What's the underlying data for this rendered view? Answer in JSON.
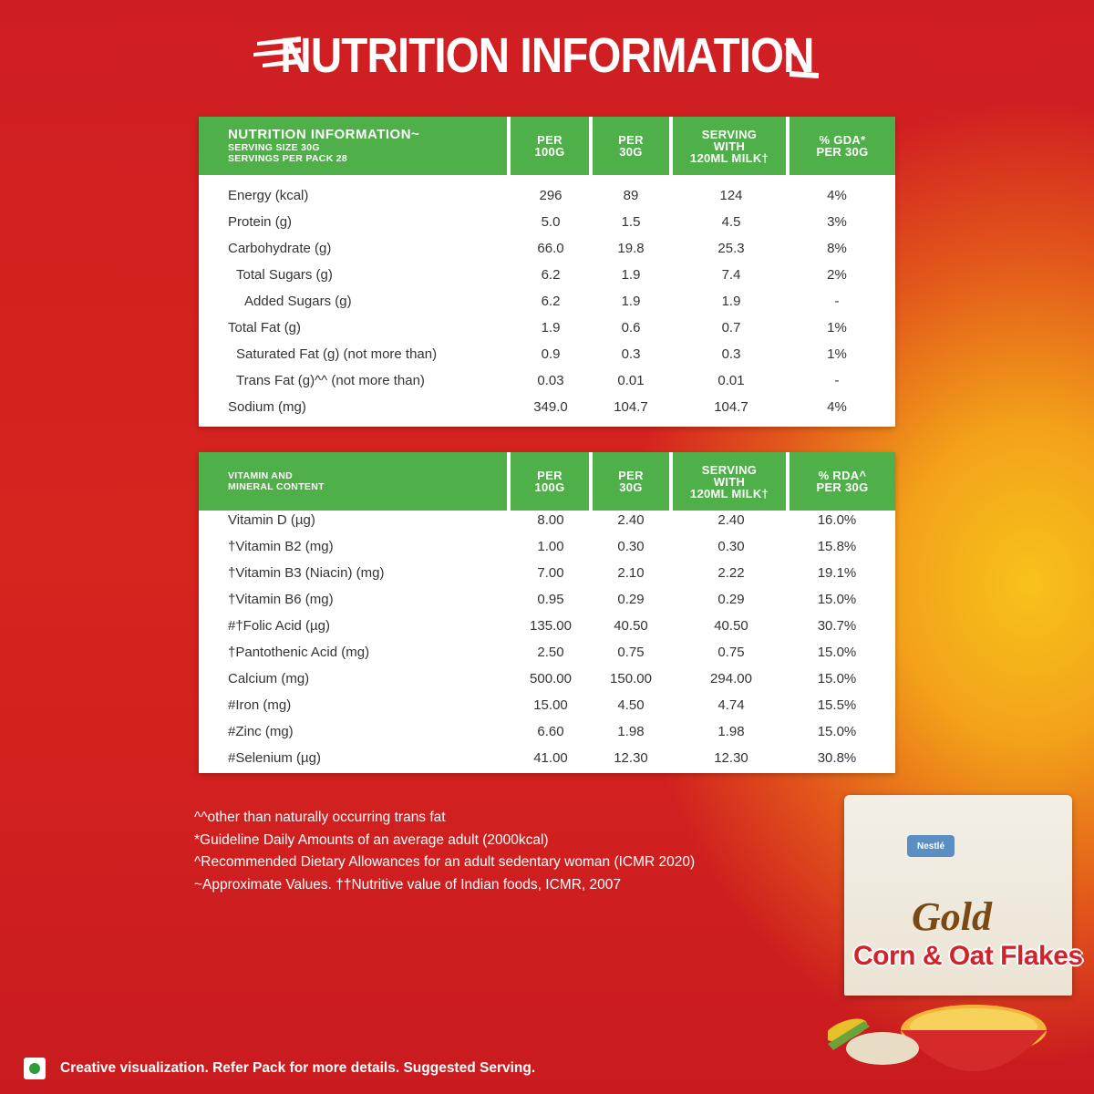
{
  "headline": "NUTRITION INFORMATION",
  "table1": {
    "header": {
      "title": "NUTRITION INFORMATION~",
      "line2": "SERVING SIZE 30G",
      "line3": "SERVINGS PER PACK 28",
      "col1": [
        "PER",
        "100G"
      ],
      "col2": [
        "PER",
        "30G"
      ],
      "col3": [
        "SERVING",
        "WITH",
        "120ML MILK†"
      ],
      "col4": [
        "% GDA*",
        "PER 30G"
      ]
    },
    "rows": [
      {
        "label": "Energy (kcal)",
        "v1": "296",
        "v2": "89",
        "v3": "124",
        "v4": "4%"
      },
      {
        "label": "Protein (g)",
        "v1": "5.0",
        "v2": "1.5",
        "v3": "4.5",
        "v4": "3%"
      },
      {
        "label": "Carbohydrate (g)",
        "v1": "66.0",
        "v2": "19.8",
        "v3": "25.3",
        "v4": "8%"
      },
      {
        "label": "Total Sugars (g)",
        "v1": "6.2",
        "v2": "1.9",
        "v3": "7.4",
        "v4": "2%"
      },
      {
        "label": "Added Sugars (g)",
        "v1": "6.2",
        "v2": "1.9",
        "v3": "1.9",
        "v4": "-"
      },
      {
        "label": "Total Fat (g)",
        "v1": "1.9",
        "v2": "0.6",
        "v3": "0.7",
        "v4": "1%"
      },
      {
        "label": "Saturated Fat (g) (not more than)",
        "v1": "0.9",
        "v2": "0.3",
        "v3": "0.3",
        "v4": "1%"
      },
      {
        "label": "Trans Fat (g)^^ (not more than)",
        "v1": "0.03",
        "v2": "0.01",
        "v3": "0.01",
        "v4": "-"
      },
      {
        "label": "Sodium (mg)",
        "v1": "349.0",
        "v2": "104.7",
        "v3": "104.7",
        "v4": "4%"
      }
    ]
  },
  "table2": {
    "header": {
      "title1": "VITAMIN AND",
      "title2": "MINERAL CONTENT",
      "col1": [
        "PER",
        "100G"
      ],
      "col2": [
        "PER",
        "30G"
      ],
      "col3": [
        "SERVING",
        "WITH",
        "120ML MILK†"
      ],
      "col4": [
        "% RDA^",
        "PER 30G"
      ]
    },
    "rows": [
      {
        "label": "Vitamin D (µg)",
        "v1": "8.00",
        "v2": "2.40",
        "v3": "2.40",
        "v4": "16.0%"
      },
      {
        "label": "†Vitamin B2 (mg)",
        "v1": "1.00",
        "v2": "0.30",
        "v3": "0.30",
        "v4": "15.8%"
      },
      {
        "label": "†Vitamin B3 (Niacin) (mg)",
        "v1": "7.00",
        "v2": "2.10",
        "v3": "2.22",
        "v4": "19.1%"
      },
      {
        "label": "†Vitamin B6 (mg)",
        "v1": "0.95",
        "v2": "0.29",
        "v3": "0.29",
        "v4": "15.0%"
      },
      {
        "label": "#†Folic Acid (µg)",
        "v1": "135.00",
        "v2": "40.50",
        "v3": "40.50",
        "v4": "30.7%"
      },
      {
        "label": "†Pantothenic Acid (mg)",
        "v1": "2.50",
        "v2": "0.75",
        "v3": "0.75",
        "v4": "15.0%"
      },
      {
        "label": "Calcium (mg)",
        "v1": "500.00",
        "v2": "150.00",
        "v3": "294.00",
        "v4": "15.0%"
      },
      {
        "label": "#Iron (mg)",
        "v1": "15.00",
        "v2": "4.50",
        "v3": "4.74",
        "v4": "15.5%"
      },
      {
        "label": "#Zinc (mg)",
        "v1": "6.60",
        "v2": "1.98",
        "v3": "1.98",
        "v4": "15.0%"
      },
      {
        "label": "#Selenium (µg)",
        "v1": "41.00",
        "v2": "12.30",
        "v3": "12.30",
        "v4": "30.8%"
      }
    ]
  },
  "notes": [
    "^^other than naturally occurring trans fat",
    "*Guideline Daily Amounts of an average adult (2000kcal)",
    "^Recommended Dietary Allowances for an adult sedentary woman (ICMR 2020)",
    "~Approximate Values. ††Nutritive value of Indian foods, ICMR, 2007"
  ],
  "footer": "Creative visualization. Refer Pack for more details. Suggested Serving.",
  "product": {
    "brand": "Nestlé",
    "line": "Gold",
    "name": "Corn & Oat Flakes"
  },
  "colors": {
    "background": "#d21f22",
    "header_green": "#4faf48",
    "glow": "#f7c21b",
    "veg_mark": "#2e9a3c"
  }
}
